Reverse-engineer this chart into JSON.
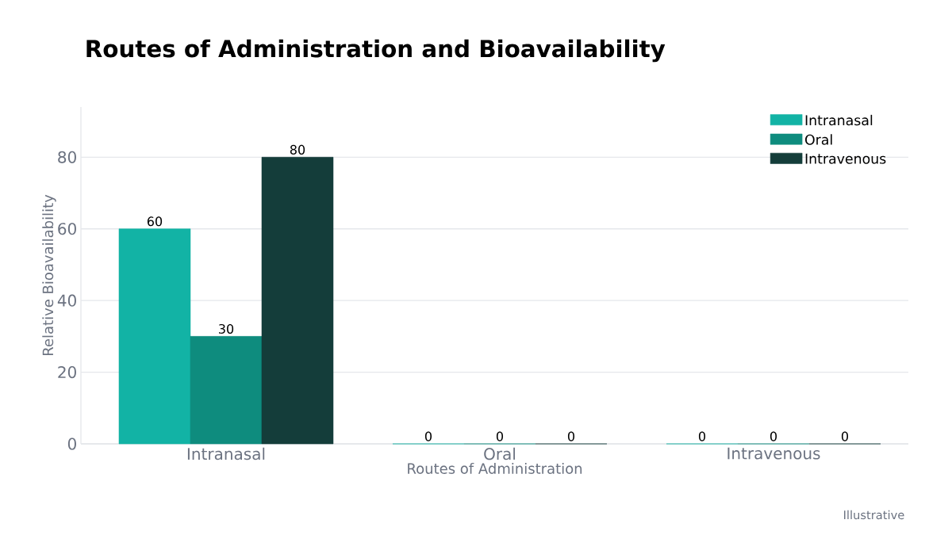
{
  "chart_data": {
    "type": "bar",
    "title": "Routes of Administration and Bioavailability",
    "xlabel": "Routes of Administration",
    "ylabel": "Relative Bioavailability",
    "categories": [
      "Intranasal",
      "Oral",
      "Intravenous"
    ],
    "series": [
      {
        "name": "Intranasal",
        "color": "#12b3a5",
        "values": [
          60,
          0,
          0
        ]
      },
      {
        "name": "Oral",
        "color": "#0e8c7e",
        "values": [
          30,
          0,
          0
        ]
      },
      {
        "name": "Intravenous",
        "color": "#143d3a",
        "values": [
          80,
          0,
          0
        ]
      }
    ],
    "ylim": [
      0,
      94
    ],
    "yticks": [
      0,
      20,
      40,
      60,
      80
    ],
    "grid": "y",
    "legend": "top right",
    "data_labels": true,
    "annotations": [
      "Illustrative"
    ]
  }
}
